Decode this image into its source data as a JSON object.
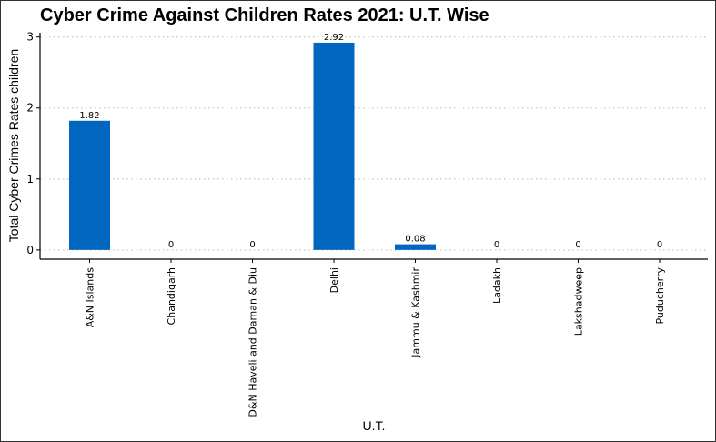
{
  "chart_data": {
    "type": "bar",
    "title": "Cyber Crime Against Children Rates 2021: U.T. Wise",
    "xlabel": "U.T.",
    "ylabel": "Total Cyber Crimes Rates children",
    "categories": [
      "A&N Islands",
      "Chandigarh",
      "D&N Haveli and Daman & Diu",
      "Delhi",
      "Jammu & Kashmir",
      "Ladakh",
      "Lakshadweep",
      "Puducherry"
    ],
    "values": [
      1.82,
      0,
      0,
      2.92,
      0.08,
      0,
      0,
      0
    ],
    "data_labels": [
      "1.82",
      "0",
      "0",
      "2.92",
      "0.08",
      "0",
      "0",
      "0"
    ],
    "yticks": [
      0,
      1,
      2,
      3
    ],
    "ytick_labels": [
      "0",
      "1",
      "2",
      "3"
    ],
    "ylim": [
      -0.13,
      3.06
    ],
    "grid": "horizontal-dotted",
    "bar_color": "#0066C0"
  }
}
